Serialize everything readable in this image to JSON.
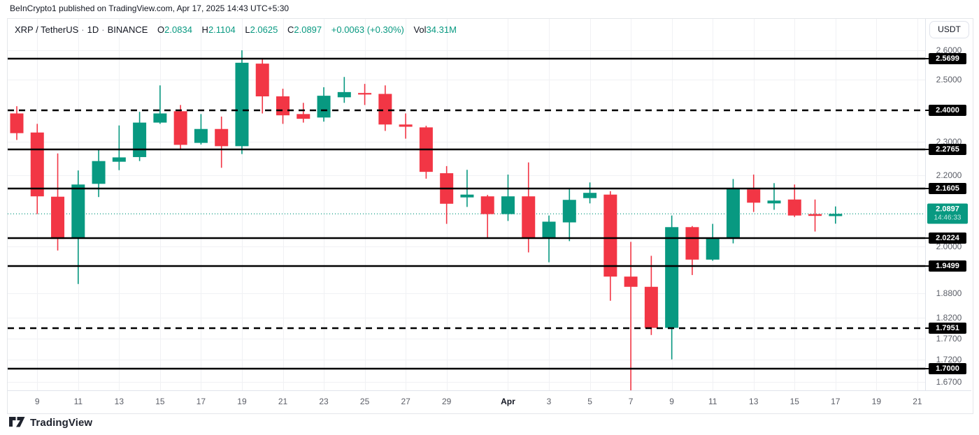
{
  "attribution": "BeInCrypto1 published on TradingView.com, Apr 17, 2025 14:43 UTC+5:30",
  "legend": {
    "symbol": "XRP / TetherUS",
    "separator": "·",
    "interval": "1D",
    "exchange": "BINANCE",
    "open_label": "O",
    "open": "2.0834",
    "high_label": "H",
    "high": "2.1104",
    "low_label": "L",
    "low": "2.0625",
    "close_label": "C",
    "close": "2.0897",
    "change": "+0.0063 (+0.30%)",
    "volume_label": "Vol",
    "volume": "34.31M"
  },
  "price_axis": {
    "currency_button": "USDT",
    "ticks": [
      {
        "text": "2.6000",
        "value": 2.6
      },
      {
        "text": "2.5000",
        "value": 2.5
      },
      {
        "text": "2.3000",
        "value": 2.3
      },
      {
        "text": "2.2000",
        "value": 2.2
      },
      {
        "text": "2.0000",
        "value": 2.0
      },
      {
        "text": "1.8800",
        "value": 1.88
      },
      {
        "text": "1.8200",
        "value": 1.82
      },
      {
        "text": "1.7700",
        "value": 1.77
      },
      {
        "text": "1.7200",
        "value": 1.72
      },
      {
        "text": "1.6700",
        "value": 1.67
      }
    ],
    "last_price": {
      "label": "2.0897",
      "countdown": "14:46:33",
      "value": 2.0897
    }
  },
  "time_axis": {
    "labels": [
      {
        "text": "9",
        "slot": 2
      },
      {
        "text": "11",
        "slot": 4
      },
      {
        "text": "13",
        "slot": 6
      },
      {
        "text": "15",
        "slot": 8
      },
      {
        "text": "17",
        "slot": 10
      },
      {
        "text": "19",
        "slot": 12
      },
      {
        "text": "21",
        "slot": 14
      },
      {
        "text": "23",
        "slot": 16
      },
      {
        "text": "25",
        "slot": 18
      },
      {
        "text": "27",
        "slot": 20
      },
      {
        "text": "29",
        "slot": 22
      },
      {
        "text": "Apr",
        "slot": 25,
        "bold": true
      },
      {
        "text": "3",
        "slot": 27
      },
      {
        "text": "5",
        "slot": 29
      },
      {
        "text": "7",
        "slot": 31
      },
      {
        "text": "9",
        "slot": 33
      },
      {
        "text": "11",
        "slot": 35
      },
      {
        "text": "13",
        "slot": 37
      },
      {
        "text": "15",
        "slot": 39
      },
      {
        "text": "17",
        "slot": 41
      },
      {
        "text": "19",
        "slot": 43
      },
      {
        "text": "21",
        "slot": 45
      }
    ]
  },
  "footer": {
    "logo_text": "TradingView"
  },
  "colors": {
    "up": "#089981",
    "down": "#F23645",
    "level_line": "#000000",
    "grid": "#f0f1f4",
    "axis_text": "#5b5e67",
    "badge_bg": "#000000",
    "badge_text": "#ffffff",
    "last_price": "#089981"
  },
  "chart_data": {
    "type": "candlestick",
    "title": "XRP / TetherUS · 1D · BINANCE",
    "scale": "log",
    "time_range_visible": "Mar 8 - Apr 21, 2025",
    "price_range_visible": {
      "min": 1.65,
      "max": 2.62
    },
    "grid": true,
    "price_grid": [
      2.6,
      2.5,
      2.3,
      2.2,
      2.0,
      1.88,
      1.82,
      1.77,
      1.72,
      1.67
    ],
    "levels": [
      {
        "label": "2.5699",
        "price": 2.5699,
        "line": "solid"
      },
      {
        "label": "2.4000",
        "price": 2.4,
        "line": "dashed"
      },
      {
        "label": "2.2765",
        "price": 2.2765,
        "line": "solid"
      },
      {
        "label": "2.1605",
        "price": 2.1605,
        "line": "solid"
      },
      {
        "label": "2.0224",
        "price": 2.0224,
        "line": "solid"
      },
      {
        "label": "1.9499",
        "price": 1.9499,
        "line": "solid"
      },
      {
        "label": "1.7951",
        "price": 1.7951,
        "line": "dashed"
      },
      {
        "label": "1.7000",
        "price": 1.7,
        "line": "solid"
      }
    ],
    "last_price": 2.0897,
    "candles": [
      {
        "d": "Mar 8",
        "o": 2.389,
        "h": 2.412,
        "l": 2.306,
        "c": 2.327
      },
      {
        "d": "Mar 9",
        "o": 2.329,
        "h": 2.356,
        "l": 2.089,
        "c": 2.139
      },
      {
        "d": "Mar 10",
        "o": 2.138,
        "h": 2.265,
        "l": 1.99,
        "c": 2.021
      },
      {
        "d": "Mar 11",
        "o": 2.022,
        "h": 2.214,
        "l": 1.903,
        "c": 2.173
      },
      {
        "d": "Mar 12",
        "o": 2.175,
        "h": 2.277,
        "l": 2.137,
        "c": 2.242
      },
      {
        "d": "Mar 13",
        "o": 2.24,
        "h": 2.351,
        "l": 2.215,
        "c": 2.253
      },
      {
        "d": "Mar 14",
        "o": 2.254,
        "h": 2.394,
        "l": 2.242,
        "c": 2.36
      },
      {
        "d": "Mar 15",
        "o": 2.36,
        "h": 2.48,
        "l": 2.356,
        "c": 2.389
      },
      {
        "d": "Mar 16",
        "o": 2.396,
        "h": 2.416,
        "l": 2.277,
        "c": 2.291
      },
      {
        "d": "Mar 17",
        "o": 2.297,
        "h": 2.387,
        "l": 2.292,
        "c": 2.34
      },
      {
        "d": "Mar 18",
        "o": 2.34,
        "h": 2.379,
        "l": 2.222,
        "c": 2.287
      },
      {
        "d": "Mar 19",
        "o": 2.287,
        "h": 2.599,
        "l": 2.263,
        "c": 2.556
      },
      {
        "d": "Mar 20",
        "o": 2.553,
        "h": 2.568,
        "l": 2.389,
        "c": 2.444
      },
      {
        "d": "Mar 21",
        "o": 2.444,
        "h": 2.469,
        "l": 2.356,
        "c": 2.383
      },
      {
        "d": "Mar 22",
        "o": 2.387,
        "h": 2.423,
        "l": 2.36,
        "c": 2.372
      },
      {
        "d": "Mar 23",
        "o": 2.376,
        "h": 2.474,
        "l": 2.363,
        "c": 2.446
      },
      {
        "d": "Mar 24",
        "o": 2.441,
        "h": 2.508,
        "l": 2.423,
        "c": 2.458
      },
      {
        "d": "Mar 25",
        "o": 2.455,
        "h": 2.485,
        "l": 2.416,
        "c": 2.45
      },
      {
        "d": "Mar 26",
        "o": 2.452,
        "h": 2.48,
        "l": 2.334,
        "c": 2.354
      },
      {
        "d": "Mar 27",
        "o": 2.354,
        "h": 2.389,
        "l": 2.31,
        "c": 2.347
      },
      {
        "d": "Mar 28",
        "o": 2.345,
        "h": 2.35,
        "l": 2.19,
        "c": 2.21
      },
      {
        "d": "Mar 29",
        "o": 2.206,
        "h": 2.227,
        "l": 2.062,
        "c": 2.118
      },
      {
        "d": "Mar 30",
        "o": 2.136,
        "h": 2.216,
        "l": 2.109,
        "c": 2.144
      },
      {
        "d": "Mar 31",
        "o": 2.139,
        "h": 2.143,
        "l": 2.024,
        "c": 2.089
      },
      {
        "d": "Apr 1",
        "o": 2.089,
        "h": 2.202,
        "l": 2.07,
        "c": 2.139
      },
      {
        "d": "Apr 2",
        "o": 2.139,
        "h": 2.238,
        "l": 1.985,
        "c": 2.024
      },
      {
        "d": "Apr 3",
        "o": 2.024,
        "h": 2.085,
        "l": 1.959,
        "c": 2.068
      },
      {
        "d": "Apr 4",
        "o": 2.066,
        "h": 2.161,
        "l": 2.015,
        "c": 2.129
      },
      {
        "d": "Apr 5",
        "o": 2.134,
        "h": 2.179,
        "l": 2.119,
        "c": 2.149
      },
      {
        "d": "Apr 6",
        "o": 2.144,
        "h": 2.154,
        "l": 1.861,
        "c": 1.922
      },
      {
        "d": "Apr 7",
        "o": 1.922,
        "h": 2.013,
        "l": 1.65,
        "c": 1.896
      },
      {
        "d": "Apr 8",
        "o": 1.896,
        "h": 1.976,
        "l": 1.778,
        "c": 1.795
      },
      {
        "d": "Apr 9",
        "o": 1.795,
        "h": 2.085,
        "l": 1.721,
        "c": 2.053
      },
      {
        "d": "Apr 10",
        "o": 2.053,
        "h": 2.056,
        "l": 1.926,
        "c": 1.966
      },
      {
        "d": "Apr 11",
        "o": 1.966,
        "h": 2.062,
        "l": 1.963,
        "c": 2.022
      },
      {
        "d": "Apr 12",
        "o": 2.022,
        "h": 2.189,
        "l": 2.009,
        "c": 2.161
      },
      {
        "d": "Apr 13",
        "o": 2.159,
        "h": 2.202,
        "l": 2.095,
        "c": 2.121
      },
      {
        "d": "Apr 14",
        "o": 2.119,
        "h": 2.177,
        "l": 2.101,
        "c": 2.127
      },
      {
        "d": "Apr 15",
        "o": 2.13,
        "h": 2.173,
        "l": 2.081,
        "c": 2.085
      },
      {
        "d": "Apr 16",
        "o": 2.089,
        "h": 2.13,
        "l": 2.041,
        "c": 2.084
      },
      {
        "d": "Apr 17",
        "o": 2.0834,
        "h": 2.1104,
        "l": 2.0625,
        "c": 2.0897
      }
    ]
  }
}
